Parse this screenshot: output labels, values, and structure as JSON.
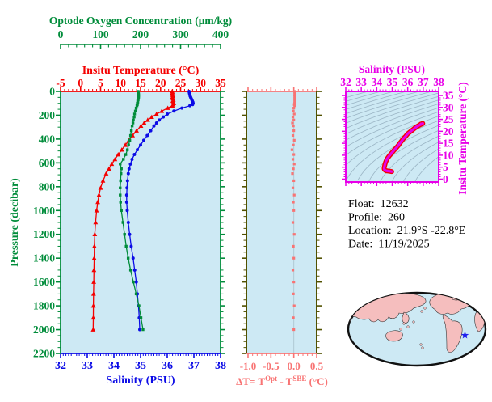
{
  "colors": {
    "green": "#008C3A",
    "red": "#F40000",
    "blue": "#0B0BE6",
    "salmon": "#F87474",
    "olive": "#515100",
    "magenta": "#E800E8",
    "plot_bg": "#CDE9F4",
    "grid_contour": "#9AB4C4",
    "zero_line": "#AFC9D4",
    "land": "#F5BEBE",
    "map_outline": "#111111",
    "star": "#2020EE",
    "text": "#000000"
  },
  "info": {
    "rows": [
      {
        "label": "Float:",
        "value": "12632"
      },
      {
        "label": "Profile:",
        "value": "260"
      },
      {
        "label": "Location:",
        "value": "21.9°S  -22.8°E"
      },
      {
        "label": "Date:",
        "value": "11/19/2025"
      }
    ]
  },
  "map": {
    "marker": "blue-star",
    "marker_lat_lon": "21.9S 22.8W"
  },
  "chart_data": [
    {
      "id": "profile-plot",
      "type": "line",
      "x_axes": [
        {
          "id": "oxygen",
          "label": "Optode Oxygen Concentration (μm/kg)",
          "range": [
            0,
            400
          ],
          "major_ticks": [
            0,
            100,
            200,
            300,
            400
          ],
          "minor_step": 20,
          "position": "top-outer",
          "color_key": "green"
        },
        {
          "id": "temperature",
          "label": "Insitu Temperature (°C)",
          "range": [
            -5,
            35
          ],
          "major_ticks": [
            -5,
            0,
            5,
            10,
            15,
            20,
            25,
            30,
            35
          ],
          "minor_step": 1,
          "position": "top",
          "color_key": "red"
        },
        {
          "id": "salinity",
          "label": "Salinity (PSU)",
          "range": [
            32,
            38
          ],
          "major_ticks": [
            32,
            33,
            34,
            35,
            36,
            37,
            38
          ],
          "minor_step": 0.1,
          "position": "bottom",
          "color_key": "blue"
        }
      ],
      "y_axis": {
        "label": "Pressure (decibar)",
        "range": [
          0,
          2200
        ],
        "major_step": 200,
        "minor_step": 50,
        "inverted": true,
        "color_key": "green"
      },
      "pressures_db": [
        0,
        10,
        20,
        30,
        40,
        50,
        60,
        70,
        80,
        90,
        100,
        110,
        120,
        140,
        165,
        190,
        215,
        240,
        265,
        290,
        330,
        370,
        410,
        450,
        490,
        530,
        570,
        610,
        650,
        690,
        750,
        810,
        870,
        930,
        1000,
        1100,
        1200,
        1300,
        1400,
        1500,
        1600,
        1700,
        1800,
        1900,
        2000
      ],
      "series": [
        {
          "name": "insitu-temperature",
          "axis": "temperature",
          "color_key": "red",
          "marker": "triangle",
          "values": [
            22.9,
            23.0,
            22.85,
            23.0,
            23.1,
            22.95,
            23.1,
            23.2,
            23.05,
            23.2,
            23.3,
            23.15,
            22.95,
            21.8,
            20.3,
            19.0,
            17.8,
            16.8,
            15.9,
            15.1,
            14.0,
            13.0,
            12.1,
            11.2,
            10.3,
            9.4,
            8.6,
            7.8,
            7.1,
            6.4,
            5.6,
            5.0,
            4.6,
            4.3,
            4.0,
            3.75,
            3.55,
            3.45,
            3.4,
            3.35,
            3.3,
            3.25,
            3.2,
            3.18,
            3.15
          ]
        },
        {
          "name": "salinity",
          "axis": "salinity",
          "color_key": "blue",
          "marker": "circle",
          "values": [
            36.82,
            36.83,
            36.84,
            36.85,
            36.86,
            36.88,
            36.9,
            36.92,
            36.94,
            36.96,
            36.97,
            36.95,
            36.85,
            36.55,
            36.25,
            36.0,
            35.85,
            35.7,
            35.6,
            35.5,
            35.38,
            35.25,
            35.12,
            35.0,
            34.88,
            34.77,
            34.68,
            34.62,
            34.57,
            34.54,
            34.51,
            34.49,
            34.48,
            34.48,
            34.5,
            34.54,
            34.59,
            34.65,
            34.72,
            34.78,
            34.84,
            34.88,
            34.92,
            34.95,
            34.97
          ]
        },
        {
          "name": "optode-oxygen",
          "axis": "oxygen",
          "color_key": "green",
          "marker": "square",
          "values": [
            194,
            194,
            195,
            195,
            195,
            195,
            194,
            194,
            193,
            193,
            192,
            192,
            191,
            189,
            187,
            185,
            184,
            182,
            181,
            179,
            177,
            175,
            173,
            170,
            167,
            163,
            157,
            149,
            152,
            151,
            150,
            149,
            149,
            150,
            152,
            156,
            160,
            164,
            169,
            175,
            182,
            189,
            196,
            201,
            206
          ]
        }
      ]
    },
    {
      "id": "delta-t-plot",
      "type": "line",
      "x_axis": {
        "label_parts": [
          [
            "ΔT= T",
            0
          ],
          [
            "Opt",
            1
          ],
          [
            " - T",
            0
          ],
          [
            "SBE",
            1
          ],
          [
            " (°C)",
            0
          ]
        ],
        "range": [
          -1.035,
          0.5
        ],
        "major_ticks": [
          -1.0,
          -0.5,
          0.0,
          0.5
        ],
        "minor_step": 0.1,
        "color_key": "salmon"
      },
      "y_axis": {
        "range": [
          0,
          2200
        ],
        "major_step": 200,
        "minor_step": 50,
        "color_key": "olive"
      },
      "zero_line": 0.0,
      "pressures_db": [
        0,
        10,
        20,
        30,
        40,
        50,
        60,
        70,
        80,
        90,
        100,
        110,
        120,
        140,
        165,
        190,
        215,
        240,
        265,
        290,
        330,
        370,
        410,
        450,
        490,
        530,
        570,
        610,
        650,
        690,
        750,
        810,
        870,
        930,
        1000,
        1100,
        1200,
        1300,
        1400,
        1500,
        1600,
        1700,
        1800,
        1900,
        2000
      ],
      "series": [
        {
          "name": "delta-temperature",
          "color_key": "salmon",
          "marker": "square",
          "values": [
            0.02,
            0.02,
            0.03,
            0.02,
            0.02,
            0.03,
            0.02,
            0.02,
            0.03,
            0.02,
            0.02,
            0.01,
            0.02,
            0.0,
            -0.01,
            0.01,
            -0.02,
            0.0,
            -0.03,
            -0.01,
            0.0,
            -0.02,
            0.01,
            -0.01,
            -0.04,
            0.0,
            -0.02,
            0.01,
            -0.01,
            -0.03,
            0.0,
            -0.02,
            0.01,
            -0.01,
            0.0,
            -0.02,
            0.01,
            -0.01,
            0.0,
            -0.02,
            0.0,
            -0.01,
            0.01,
            -0.01,
            0.0
          ]
        }
      ]
    },
    {
      "id": "ts-diagram",
      "type": "line",
      "x_axis": {
        "label": "Salinity (PSU)",
        "range": [
          32,
          38
        ],
        "major_ticks": [
          32,
          33,
          34,
          35,
          36,
          37,
          38
        ],
        "minor_step": 0.2,
        "color_key": "magenta"
      },
      "y_axis": {
        "label": "Insitu Temperature (°C)",
        "range": [
          -1.2,
          36.7
        ],
        "major_ticks": [
          0,
          5,
          10,
          15,
          20,
          25,
          30,
          35
        ],
        "minor_step": 1,
        "color_key": "magenta"
      },
      "isopycnals": {
        "sigma_t_levels_from": 18,
        "to": 30,
        "step": 0.6
      },
      "curve_source": "profile-series salinity (x) vs insitu-temperature (y)"
    }
  ]
}
